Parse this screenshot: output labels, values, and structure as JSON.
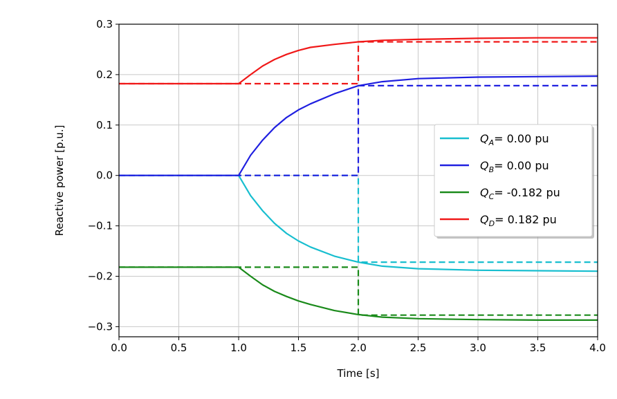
{
  "chart_data": {
    "type": "line",
    "title": "",
    "xlabel": "Time [s]",
    "ylabel": "Reactive power [p.u.]",
    "xlim": [
      0.0,
      4.0
    ],
    "ylim": [
      -0.32,
      0.3
    ],
    "xticks": [
      "0.0",
      "0.5",
      "1.0",
      "1.5",
      "2.0",
      "2.5",
      "3.0",
      "3.5",
      "4.0"
    ],
    "yticks": [
      "−0.3",
      "−0.2",
      "−0.1",
      "0.0",
      "0.1",
      "0.2",
      "0.3"
    ],
    "ytick_values": [
      -0.3,
      -0.2,
      -0.1,
      0.0,
      0.1,
      0.2,
      0.3
    ],
    "xtick_values": [
      0.0,
      0.5,
      1.0,
      1.5,
      2.0,
      2.5,
      3.0,
      3.5,
      4.0
    ],
    "grid": true,
    "legend_placement": "center-right",
    "series": [
      {
        "name": "Q_A",
        "legend": {
          "symbol": "Q",
          "sub": "A",
          "text": "= 0.00 pu"
        },
        "color": "#17becf",
        "solid": {
          "x": [
            0,
            1.0,
            1.1,
            1.2,
            1.3,
            1.4,
            1.5,
            1.6,
            1.8,
            2.0,
            2.2,
            2.5,
            3.0,
            3.5,
            4.0
          ],
          "y": [
            0,
            0,
            -0.04,
            -0.07,
            -0.095,
            -0.115,
            -0.13,
            -0.142,
            -0.16,
            -0.172,
            -0.18,
            -0.185,
            -0.188,
            -0.189,
            -0.19
          ]
        },
        "dashed": {
          "x": [
            0,
            1.0,
            2.0,
            2.0,
            4.0
          ],
          "y": [
            0,
            0,
            0,
            -0.172,
            -0.172
          ]
        }
      },
      {
        "name": "Q_B",
        "legend": {
          "symbol": "Q",
          "sub": "B",
          "text": "= 0.00 pu"
        },
        "color": "#1f1fe0",
        "solid": {
          "x": [
            0,
            1.0,
            1.1,
            1.2,
            1.3,
            1.4,
            1.5,
            1.6,
            1.8,
            2.0,
            2.2,
            2.5,
            3.0,
            3.5,
            4.0
          ],
          "y": [
            0,
            0,
            0.04,
            0.07,
            0.095,
            0.115,
            0.13,
            0.142,
            0.162,
            0.178,
            0.186,
            0.192,
            0.195,
            0.196,
            0.197
          ]
        },
        "dashed": {
          "x": [
            0,
            1.0,
            2.0,
            2.0,
            4.0
          ],
          "y": [
            0,
            0,
            0,
            0.178,
            0.178
          ]
        }
      },
      {
        "name": "Q_C",
        "legend": {
          "symbol": "Q",
          "sub": "C",
          "text": "= -0.182 pu"
        },
        "color": "#1a8a1a",
        "solid": {
          "x": [
            0,
            1.0,
            1.1,
            1.2,
            1.3,
            1.4,
            1.5,
            1.6,
            1.8,
            2.0,
            2.2,
            2.5,
            3.0,
            3.5,
            4.0
          ],
          "y": [
            -0.182,
            -0.182,
            -0.2,
            -0.217,
            -0.23,
            -0.24,
            -0.249,
            -0.256,
            -0.268,
            -0.276,
            -0.281,
            -0.284,
            -0.286,
            -0.287,
            -0.287
          ]
        },
        "dashed": {
          "x": [
            0,
            1.0,
            2.0,
            2.0,
            4.0
          ],
          "y": [
            -0.182,
            -0.182,
            -0.182,
            -0.277,
            -0.277
          ]
        }
      },
      {
        "name": "Q_D",
        "legend": {
          "symbol": "Q",
          "sub": "D",
          "text": "= 0.182 pu"
        },
        "color": "#f01818",
        "solid": {
          "x": [
            0,
            1.0,
            1.1,
            1.2,
            1.3,
            1.4,
            1.5,
            1.6,
            1.8,
            2.0,
            2.2,
            2.5,
            3.0,
            3.5,
            4.0
          ],
          "y": [
            0.182,
            0.182,
            0.2,
            0.217,
            0.23,
            0.24,
            0.248,
            0.254,
            0.26,
            0.265,
            0.268,
            0.27,
            0.272,
            0.273,
            0.273
          ]
        },
        "dashed": {
          "x": [
            0,
            1.0,
            2.0,
            2.0,
            4.0
          ],
          "y": [
            0.182,
            0.182,
            0.182,
            0.265,
            0.265
          ]
        }
      }
    ]
  }
}
